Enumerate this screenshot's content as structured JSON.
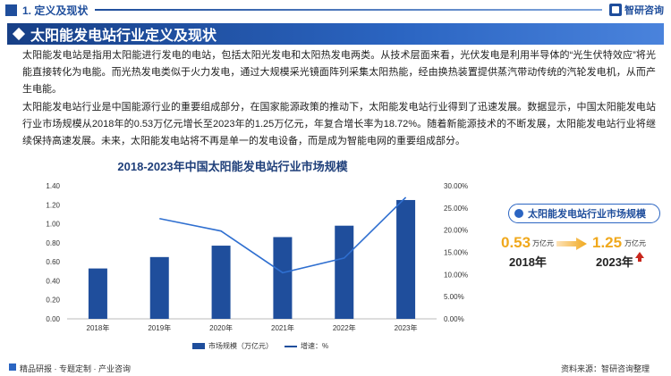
{
  "header": {
    "section": "1. 定义及现状",
    "logo_text": "智研咨询"
  },
  "banner": {
    "title": "太阳能发电站行业定义及现状"
  },
  "paragraphs": [
    "太阳能发电站是指用太阳能进行发电的电站，包括太阳光发电和太阳热发电两类。从技术层面来看，光伏发电是利用半导体的“光生伏特效应”将光能直接转化为电能。而光热发电类似于火力发电，通过大规模采光镜面阵列采集太阳热能，经由换热装置提供蒸汽带动传统的汽轮发电机，从而产生电能。",
    "太阳能发电站行业是中国能源行业的重要组成部分，在国家能源政策的推动下，太阳能发电站行业得到了迅速发展。数据显示，中国太阳能发电站行业市场规模从2018年的0.53万亿元增长至2023年的1.25万亿元，年复合增长率为18.72%。随着新能源技术的不断发展，太阳能发电站行业将继续保持高速发展。未来，太阳能发电站将不再是单一的发电设备，而是成为智能电网的重要组成部分。"
  ],
  "chart_data": {
    "type": "bar",
    "title": "2018-2023年中国太阳能发电站行业市场规模",
    "categories": [
      "2018年",
      "2019年",
      "2020年",
      "2021年",
      "2022年",
      "2023年"
    ],
    "series": [
      {
        "name": "市场规模（万亿元）",
        "type": "bar",
        "axis": "left",
        "values": [
          0.53,
          0.65,
          0.77,
          0.86,
          0.98,
          1.25
        ]
      },
      {
        "name": "增速：%",
        "type": "line",
        "axis": "right",
        "values": [
          null,
          22.6,
          19.8,
          10.4,
          13.7,
          27.4
        ]
      }
    ],
    "y_left": {
      "min": 0,
      "max": 1.4,
      "ticks": [
        "0.00",
        "0.20",
        "0.40",
        "0.60",
        "0.80",
        "1.00",
        "1.20",
        "1.40"
      ]
    },
    "y_right": {
      "min": 0,
      "max": 30,
      "ticks": [
        "0.00%",
        "5.00%",
        "10.00%",
        "15.00%",
        "20.00%",
        "25.00%",
        "30.00%"
      ]
    },
    "legend_position": "bottom",
    "colors": {
      "bar": "#1f4e9c",
      "line": "#2f6fd0"
    }
  },
  "card": {
    "title": "太阳能发电站行业市场规模",
    "start_value": "0.53",
    "start_unit": "万亿元",
    "start_year": "2018年",
    "end_value": "1.25",
    "end_unit": "万亿元",
    "end_year": "2023年"
  },
  "footer": {
    "left": "精品研报 · 专题定制 · 产业咨询",
    "right": "资料来源：智研咨询整理"
  }
}
